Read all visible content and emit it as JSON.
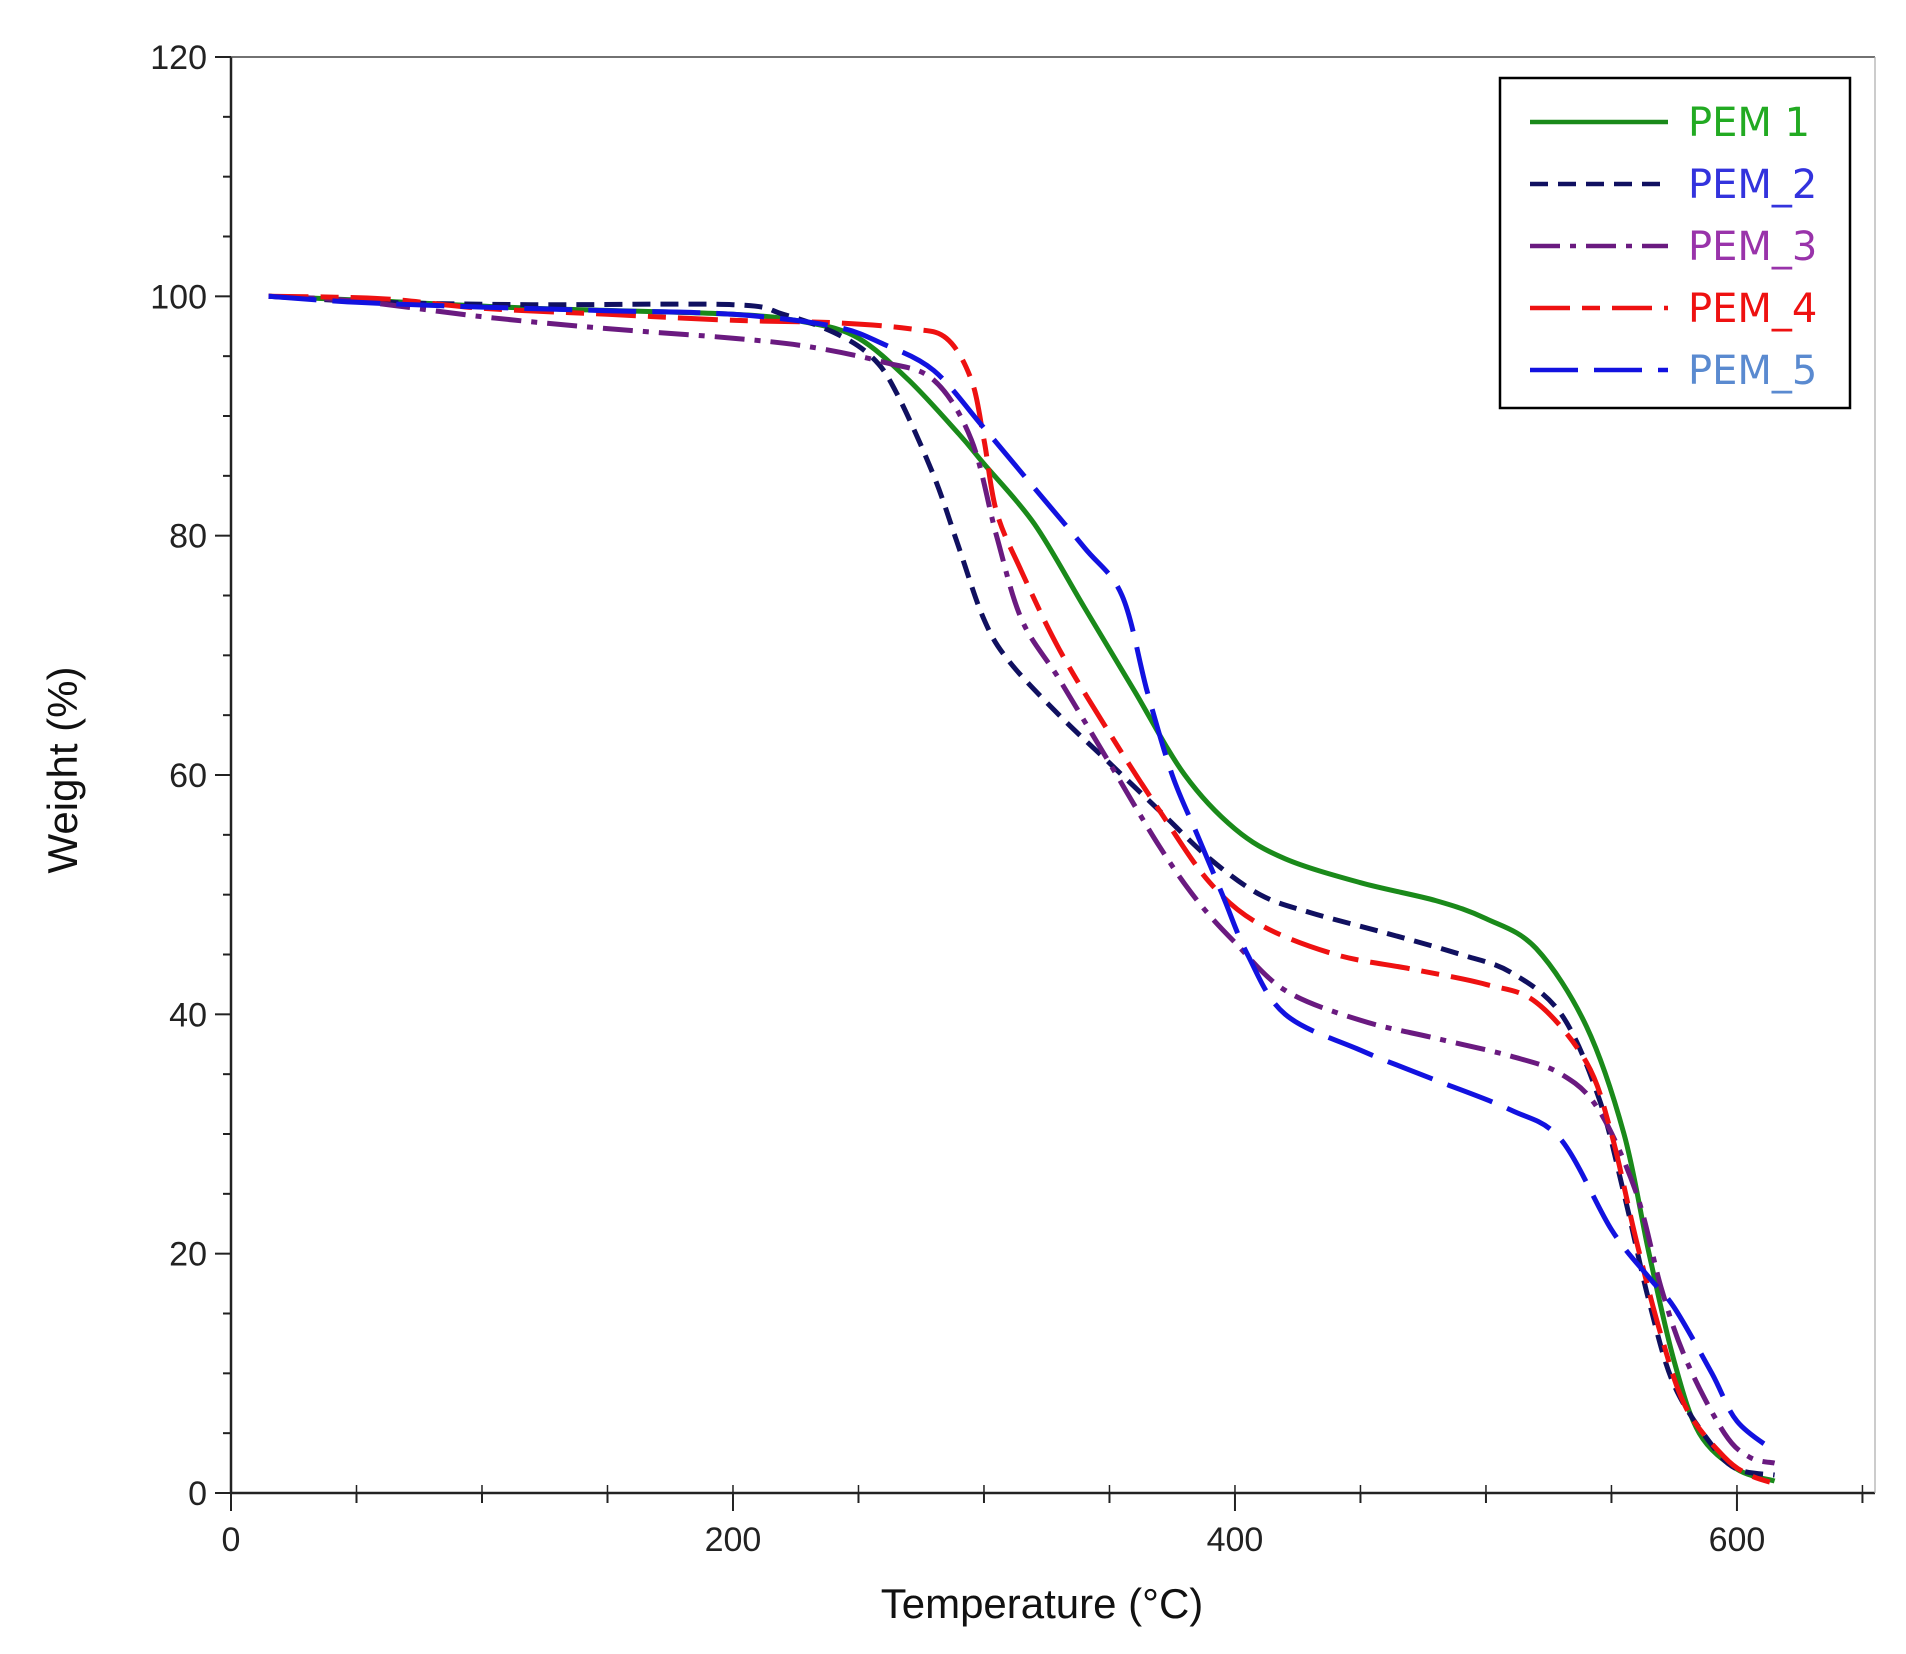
{
  "chart_data": {
    "type": "line",
    "title": "",
    "xlabel": "Temperature (°C)",
    "ylabel": "Weight (%)",
    "xlim": [
      0,
      655
    ],
    "ylim": [
      0,
      120
    ],
    "x_ticks": [
      {
        "value": 0,
        "label": "0"
      },
      {
        "value": 200,
        "label": "200"
      },
      {
        "value": 400,
        "label": "400"
      },
      {
        "value": 600,
        "label": "600"
      }
    ],
    "y_ticks": [
      {
        "value": 0,
        "label": "0"
      },
      {
        "value": 20,
        "label": "20"
      },
      {
        "value": 40,
        "label": "40"
      },
      {
        "value": 60,
        "label": "60"
      },
      {
        "value": 80,
        "label": "80"
      },
      {
        "value": 100,
        "label": "100"
      },
      {
        "value": 120,
        "label": "120"
      }
    ],
    "grid": false,
    "legend_position": "top-right",
    "series": [
      {
        "name": "PEM  1",
        "color": "#1a8a1a",
        "label_color": "#22aa22",
        "dash": "solid",
        "points": [
          [
            15,
            100
          ],
          [
            60,
            99.6
          ],
          [
            120,
            99
          ],
          [
            200,
            98.5
          ],
          [
            230,
            97.8
          ],
          [
            250,
            96.5
          ],
          [
            270,
            93
          ],
          [
            290,
            88.5
          ],
          [
            300,
            86
          ],
          [
            320,
            81
          ],
          [
            340,
            74
          ],
          [
            360,
            67
          ],
          [
            380,
            60
          ],
          [
            400,
            55.5
          ],
          [
            420,
            53
          ],
          [
            450,
            51
          ],
          [
            480,
            49.5
          ],
          [
            500,
            48
          ],
          [
            520,
            45.5
          ],
          [
            540,
            39
          ],
          [
            555,
            30
          ],
          [
            565,
            20
          ],
          [
            575,
            11
          ],
          [
            585,
            5
          ],
          [
            600,
            2
          ],
          [
            615,
            1
          ]
        ]
      },
      {
        "name": "PEM_2",
        "color": "#101060",
        "label_color": "#3333dd",
        "dash": "dashed",
        "points": [
          [
            15,
            100
          ],
          [
            60,
            99.5
          ],
          [
            120,
            99.3
          ],
          [
            200,
            99.3
          ],
          [
            220,
            98.5
          ],
          [
            240,
            97
          ],
          [
            255,
            95
          ],
          [
            265,
            92
          ],
          [
            280,
            85
          ],
          [
            290,
            79
          ],
          [
            300,
            73
          ],
          [
            310,
            69.5
          ],
          [
            330,
            65
          ],
          [
            350,
            61
          ],
          [
            370,
            57
          ],
          [
            390,
            53
          ],
          [
            410,
            50
          ],
          [
            430,
            48.5
          ],
          [
            460,
            46.8
          ],
          [
            490,
            45
          ],
          [
            510,
            43.5
          ],
          [
            530,
            40
          ],
          [
            545,
            33
          ],
          [
            555,
            25
          ],
          [
            565,
            16
          ],
          [
            575,
            9
          ],
          [
            590,
            4
          ],
          [
            600,
            2
          ],
          [
            615,
            1.5
          ]
        ]
      },
      {
        "name": "PEM_3",
        "color": "#6a1a80",
        "label_color": "#9933aa",
        "dash": "dashdot",
        "points": [
          [
            15,
            100
          ],
          [
            50,
            99.6
          ],
          [
            100,
            98.3
          ],
          [
            150,
            97.3
          ],
          [
            200,
            96.5
          ],
          [
            230,
            95.8
          ],
          [
            260,
            94.5
          ],
          [
            280,
            93
          ],
          [
            295,
            88
          ],
          [
            305,
            80
          ],
          [
            315,
            73
          ],
          [
            330,
            68
          ],
          [
            350,
            61
          ],
          [
            370,
            54
          ],
          [
            385,
            49.5
          ],
          [
            400,
            46
          ],
          [
            420,
            42
          ],
          [
            450,
            39.5
          ],
          [
            480,
            38
          ],
          [
            510,
            36.5
          ],
          [
            530,
            35
          ],
          [
            545,
            32
          ],
          [
            560,
            25
          ],
          [
            570,
            17
          ],
          [
            580,
            11
          ],
          [
            595,
            5
          ],
          [
            605,
            3
          ],
          [
            615,
            2.5
          ]
        ]
      },
      {
        "name": "PEM_4",
        "color": "#ee1111",
        "label_color": "#ee1111",
        "dash": "longshort",
        "points": [
          [
            15,
            100
          ],
          [
            60,
            99.8
          ],
          [
            100,
            99
          ],
          [
            150,
            98.5
          ],
          [
            200,
            98
          ],
          [
            240,
            97.8
          ],
          [
            270,
            97.3
          ],
          [
            285,
            96.5
          ],
          [
            295,
            93
          ],
          [
            300,
            88
          ],
          [
            305,
            82
          ],
          [
            315,
            77
          ],
          [
            330,
            70.5
          ],
          [
            350,
            63.5
          ],
          [
            370,
            57
          ],
          [
            390,
            51
          ],
          [
            410,
            47.5
          ],
          [
            440,
            45
          ],
          [
            470,
            43.8
          ],
          [
            500,
            42.5
          ],
          [
            520,
            41
          ],
          [
            540,
            36
          ],
          [
            550,
            30
          ],
          [
            560,
            21
          ],
          [
            570,
            13
          ],
          [
            580,
            7
          ],
          [
            595,
            3
          ],
          [
            605,
            1.5
          ],
          [
            615,
            0.8
          ]
        ]
      },
      {
        "name": "PEM_5",
        "color": "#1212e0",
        "label_color": "#5a8ad0",
        "dash": "longdash",
        "points": [
          [
            15,
            100
          ],
          [
            50,
            99.5
          ],
          [
            100,
            99.1
          ],
          [
            150,
            98.8
          ],
          [
            200,
            98.5
          ],
          [
            240,
            97.5
          ],
          [
            260,
            96
          ],
          [
            280,
            93.8
          ],
          [
            300,
            89
          ],
          [
            320,
            84
          ],
          [
            340,
            79
          ],
          [
            355,
            75
          ],
          [
            365,
            67
          ],
          [
            375,
            60
          ],
          [
            385,
            55
          ],
          [
            395,
            50
          ],
          [
            405,
            45
          ],
          [
            420,
            40
          ],
          [
            450,
            37
          ],
          [
            480,
            34.5
          ],
          [
            510,
            32
          ],
          [
            530,
            29.5
          ],
          [
            550,
            22
          ],
          [
            565,
            18
          ],
          [
            575,
            15.5
          ],
          [
            590,
            10
          ],
          [
            600,
            6
          ],
          [
            615,
            3.5
          ]
        ]
      }
    ],
    "annotations": []
  }
}
